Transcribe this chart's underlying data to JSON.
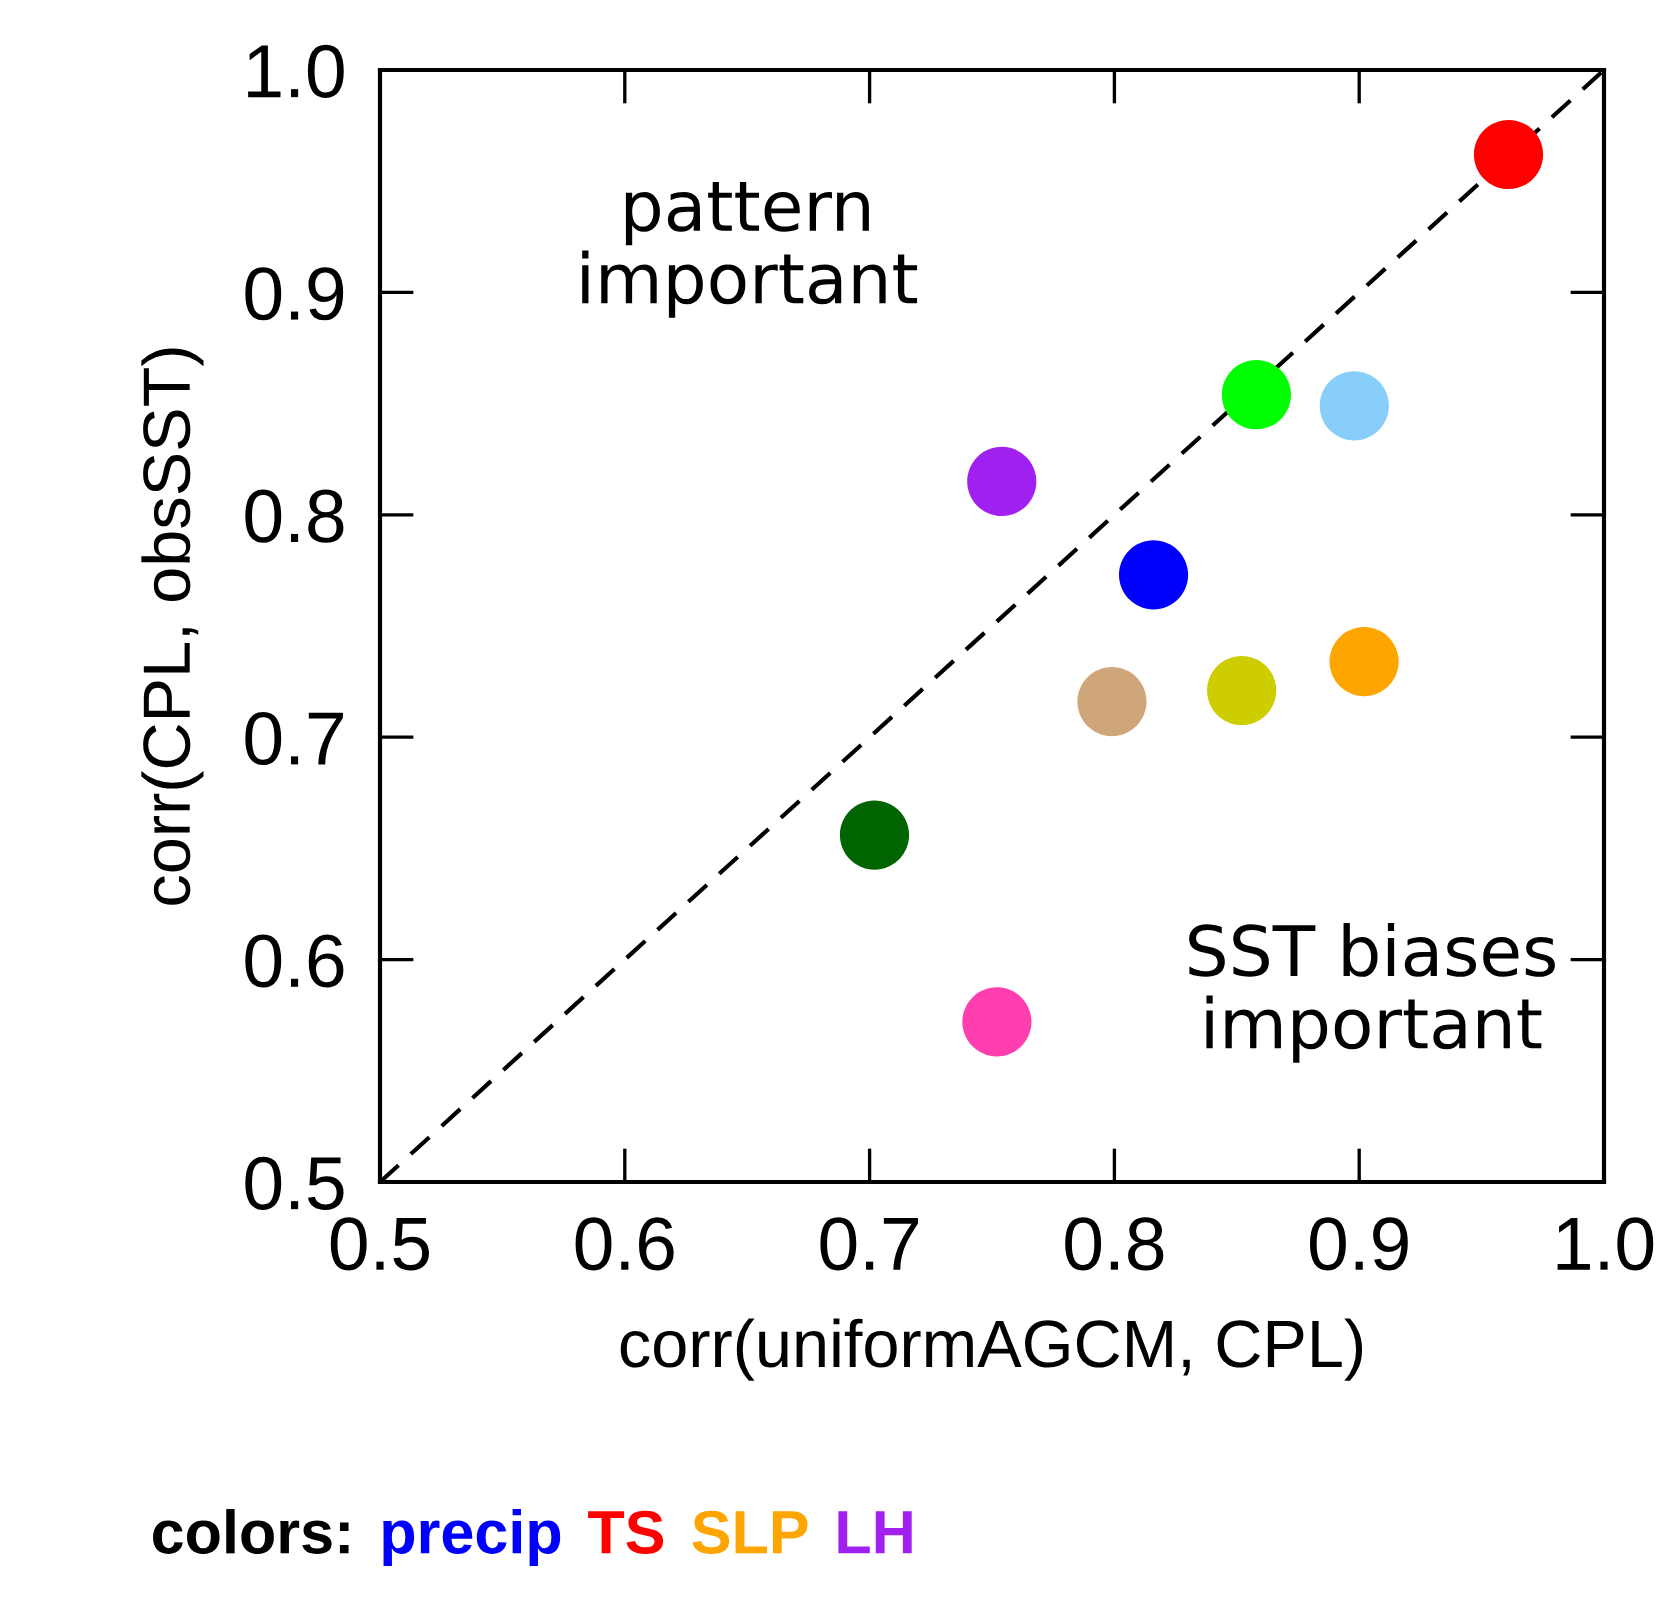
{
  "chart_data": {
    "type": "scatter",
    "xlabel": "corr(uniformAGCM, CPL)",
    "ylabel": "corr(CPL, obsSST)",
    "xlim": [
      0.5,
      1.0
    ],
    "ylim": [
      0.5,
      1.0
    ],
    "xticks": [
      {
        "value": 0.5,
        "label": "0.5"
      },
      {
        "value": 0.6,
        "label": "0.6"
      },
      {
        "value": 0.7,
        "label": "0.7"
      },
      {
        "value": 0.8,
        "label": "0.8"
      },
      {
        "value": 0.9,
        "label": "0.9"
      },
      {
        "value": 1.0,
        "label": "1.0"
      }
    ],
    "yticks": [
      {
        "value": 0.5,
        "label": "0.5"
      },
      {
        "value": 0.6,
        "label": "0.6"
      },
      {
        "value": 0.7,
        "label": "0.7"
      },
      {
        "value": 0.8,
        "label": "0.8"
      },
      {
        "value": 0.9,
        "label": "0.9"
      },
      {
        "value": 1.0,
        "label": "1.0"
      }
    ],
    "grid": false,
    "legend": false,
    "marker": "circle",
    "annotations": [
      "pattern important",
      "SST biases important",
      "colors:"
    ],
    "series": [
      {
        "name": "precip",
        "color": "#0000ff",
        "x": [
          0.816
        ],
        "values": [
          0.773
        ]
      },
      {
        "name": "TS",
        "color": "#ff0000",
        "x": [
          0.961
        ],
        "values": [
          0.962
        ]
      },
      {
        "name": "SLP",
        "color": "#ffa500",
        "x": [
          0.902
        ],
        "values": [
          0.734
        ]
      },
      {
        "name": "LH",
        "color": "#a020f0",
        "x": [
          0.754
        ],
        "values": [
          0.815
        ]
      },
      {
        "color": "#00ff00",
        "x": [
          0.858
        ],
        "values": [
          0.854
        ]
      },
      {
        "color": "#87cefa",
        "x": [
          0.898
        ],
        "values": [
          0.849
        ]
      },
      {
        "color": "#cdcd00",
        "x": [
          0.852
        ],
        "values": [
          0.721
        ]
      },
      {
        "color": "#cfa67a",
        "x": [
          0.799
        ],
        "values": [
          0.716
        ]
      },
      {
        "color": "#006400",
        "x": [
          0.702
        ],
        "values": [
          0.656
        ]
      },
      {
        "color": "#ff3fb0",
        "x": [
          0.752
        ],
        "values": [
          0.572
        ]
      },
      {
        "type": "line",
        "color": "#000000",
        "line_style": "dashed",
        "marker": "none",
        "x": [
          0.5,
          1.0
        ],
        "values": [
          0.5,
          1.0
        ]
      }
    ]
  }
}
